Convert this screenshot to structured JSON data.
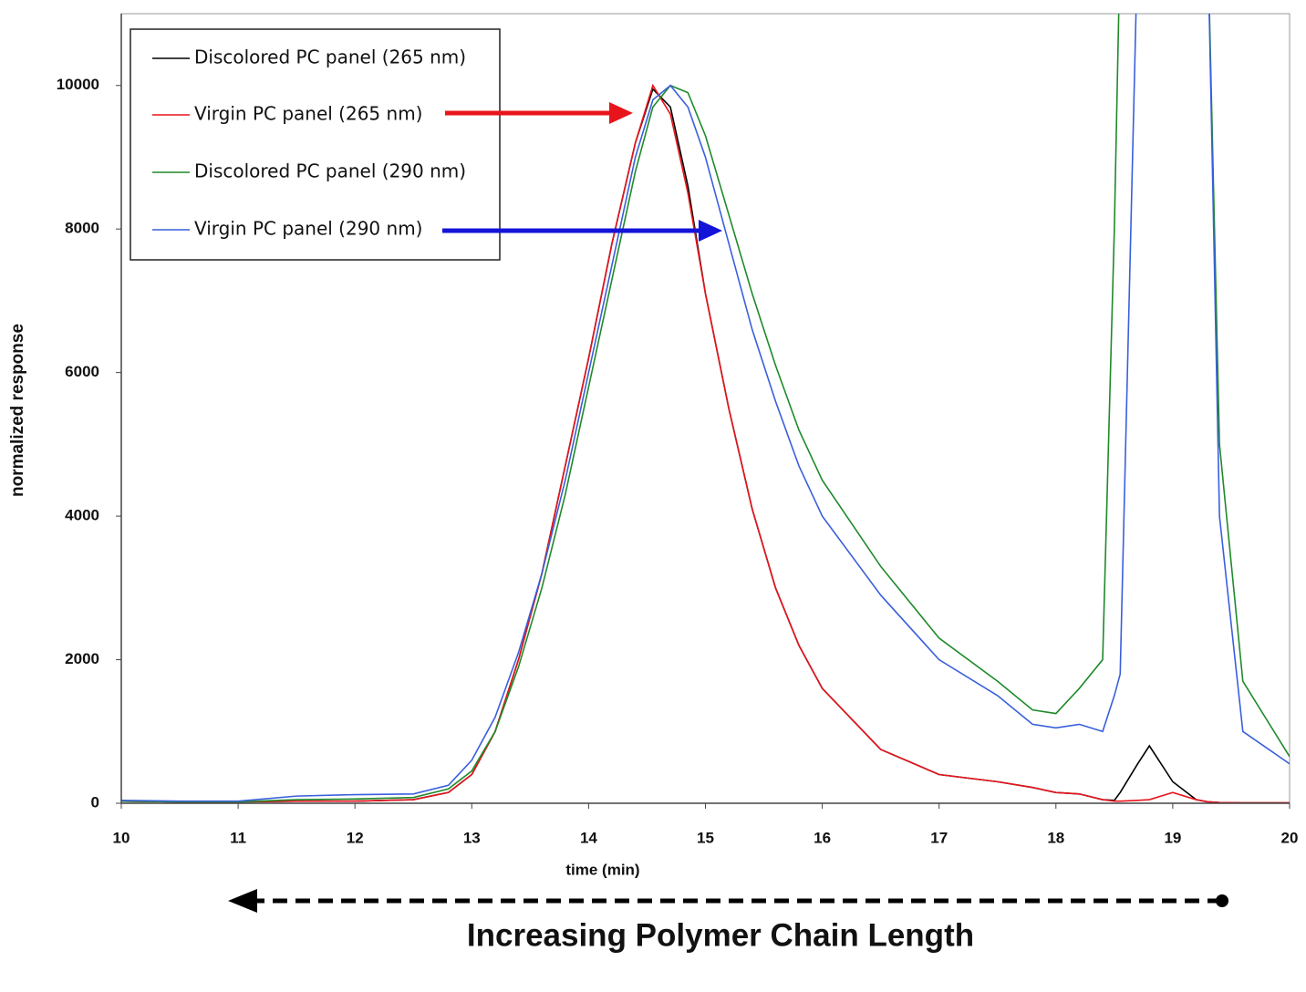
{
  "chart_data": {
    "type": "line",
    "x_label": "time (min)",
    "y_label": "normalized response",
    "annotation": "Increasing Polymer Chain Length",
    "xlim": [
      10,
      20
    ],
    "ylim": [
      0,
      11000
    ],
    "xticks": [
      10,
      11,
      12,
      13,
      14,
      15,
      16,
      17,
      18,
      19,
      20
    ],
    "yticks": [
      0,
      2000,
      4000,
      6000,
      8000,
      10000
    ],
    "grid": false,
    "legend": "upper left",
    "x": [
      10,
      10.5,
      11,
      11.5,
      12,
      12.5,
      12.8,
      13,
      13.2,
      13.4,
      13.6,
      13.8,
      14,
      14.2,
      14.4,
      14.55,
      14.7,
      14.85,
      15,
      15.2,
      15.4,
      15.6,
      15.8,
      16,
      16.5,
      17,
      17.5,
      17.8,
      18,
      18.2,
      18.4,
      18.5,
      18.55,
      18.7,
      18.8,
      19,
      19.2,
      19.3,
      19.4,
      19.6,
      20
    ],
    "series": [
      {
        "name": "Discolored PC panel (265 nm)",
        "color": "#000000",
        "values": [
          30,
          20,
          20,
          30,
          30,
          50,
          150,
          400,
          1000,
          2000,
          3200,
          4700,
          6200,
          7800,
          9200,
          9950,
          9700,
          8600,
          7100,
          5500,
          4100,
          3000,
          2200,
          1600,
          750,
          400,
          300,
          220,
          150,
          130,
          50,
          40,
          150,
          550,
          800,
          300,
          50,
          20,
          10,
          5,
          5
        ]
      },
      {
        "name": "Virgin PC panel (265 nm)",
        "color": "#e8141c",
        "values": [
          30,
          20,
          20,
          30,
          30,
          50,
          150,
          400,
          1000,
          2000,
          3200,
          4700,
          6200,
          7800,
          9200,
          10000,
          9600,
          8500,
          7100,
          5500,
          4100,
          3000,
          2200,
          1600,
          750,
          400,
          300,
          220,
          150,
          130,
          50,
          30,
          30,
          40,
          50,
          150,
          50,
          20,
          10,
          5,
          5
        ]
      },
      {
        "name": "Discolored PC panel (290 nm)",
        "color": "#1f8a2a",
        "values": [
          30,
          20,
          20,
          50,
          60,
          80,
          200,
          450,
          1000,
          1900,
          3000,
          4300,
          5800,
          7300,
          8800,
          9700,
          10000,
          9900,
          9300,
          8200,
          7100,
          6100,
          5200,
          4500,
          3300,
          2300,
          1700,
          1300,
          1250,
          1600,
          2000,
          8000,
          12000,
          null,
          null,
          null,
          null,
          12000,
          5000,
          1700,
          650
        ]
      },
      {
        "name": "Virgin PC panel (290 nm)",
        "color": "#3a5fdc",
        "values": [
          40,
          30,
          30,
          100,
          120,
          130,
          250,
          600,
          1200,
          2100,
          3200,
          4500,
          6000,
          7500,
          9000,
          9800,
          10000,
          9700,
          9000,
          7800,
          6600,
          5600,
          4700,
          4000,
          2900,
          2000,
          1500,
          1100,
          1050,
          1100,
          1000,
          1500,
          1800,
          12000,
          null,
          null,
          null,
          12000,
          4000,
          1000,
          550
        ]
      }
    ]
  }
}
